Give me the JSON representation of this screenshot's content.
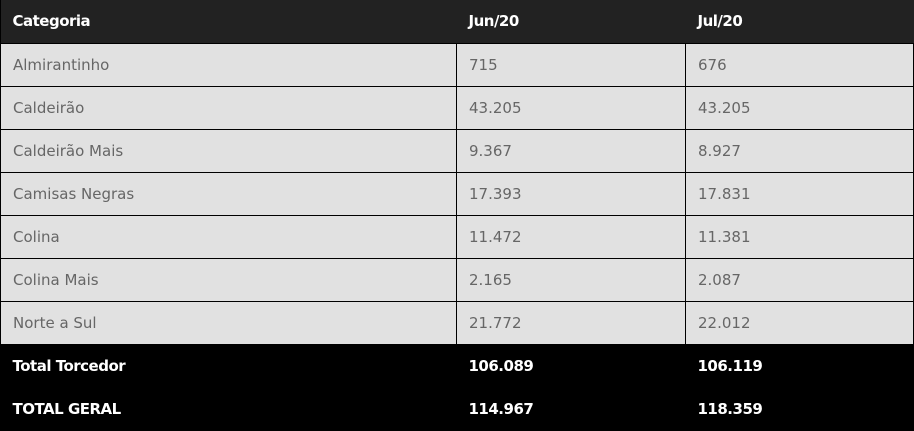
{
  "header": [
    "Categoria",
    "Jun/20",
    "Jul/20"
  ],
  "rows": [
    [
      "Almirantinho",
      "715",
      "676"
    ],
    [
      "Caldeirão",
      "43.205",
      "43.205"
    ],
    [
      "Caldeirão Mais",
      "9.367",
      "8.927"
    ],
    [
      "Camisas Negras",
      "17.393",
      "17.831"
    ],
    [
      "Colina",
      "11.472",
      "11.381"
    ],
    [
      "Colina Mais",
      "2.165",
      "2.087"
    ],
    [
      "Norte a Sul",
      "21.772",
      "22.012"
    ]
  ],
  "totals": [
    [
      "Total Torcedor",
      "106.089",
      "106.119"
    ],
    [
      "TOTAL GERAL",
      "114.967",
      "118.359"
    ]
  ]
}
